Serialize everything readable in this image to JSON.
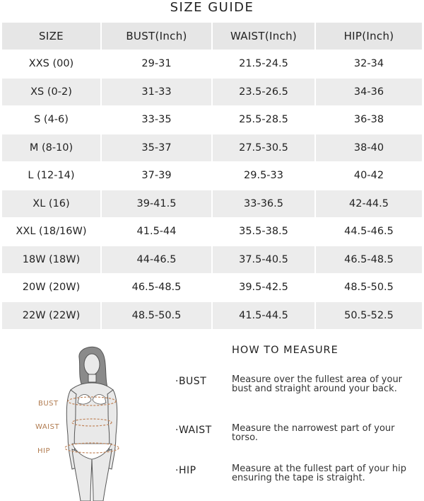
{
  "title": "SIZE GUIDE",
  "table": {
    "headers": [
      "SIZE",
      "BUST(Inch)",
      "WAIST(Inch)",
      "HIP(Inch)"
    ],
    "rows": [
      [
        "XXS (00)",
        "29-31",
        "21.5-24.5",
        "32-34"
      ],
      [
        "XS (0-2)",
        "31-33",
        "23.5-26.5",
        "34-36"
      ],
      [
        "S (4-6)",
        "33-35",
        "25.5-28.5",
        "36-38"
      ],
      [
        "M (8-10)",
        "35-37",
        "27.5-30.5",
        "38-40"
      ],
      [
        "L (12-14)",
        "37-39",
        "29.5-33",
        "40-42"
      ],
      [
        "XL (16)",
        "39-41.5",
        "33-36.5",
        "42-44.5"
      ],
      [
        "XXL (18/16W)",
        "41.5-44",
        "35.5-38.5",
        "44.5-46.5"
      ],
      [
        "18W (18W)",
        "44-46.5",
        "37.5-40.5",
        "46.5-48.5"
      ],
      [
        "20W (20W)",
        "46.5-48.5",
        "39.5-42.5",
        "48.5-50.5"
      ],
      [
        "22W (22W)",
        "48.5-50.5",
        "41.5-44.5",
        "50.5-52.5"
      ]
    ]
  },
  "how_to_measure": {
    "title": "HOW TO MEASURE",
    "items": [
      {
        "label": "·BUST",
        "description": "Measure over the fullest area of your bust and straight around your back."
      },
      {
        "label": "·WAIST",
        "description": "Measure the narrowest part of your torso."
      },
      {
        "label": "·HIP",
        "description": "Measure at the fullest part of your hip ensuring the tape is straight."
      }
    ]
  },
  "figure": {
    "labels": {
      "bust": "BUST",
      "waist": "WAIST",
      "hip": "HIP"
    },
    "accent_color": "#c0845a",
    "icon": "body-measurement-illustration"
  }
}
